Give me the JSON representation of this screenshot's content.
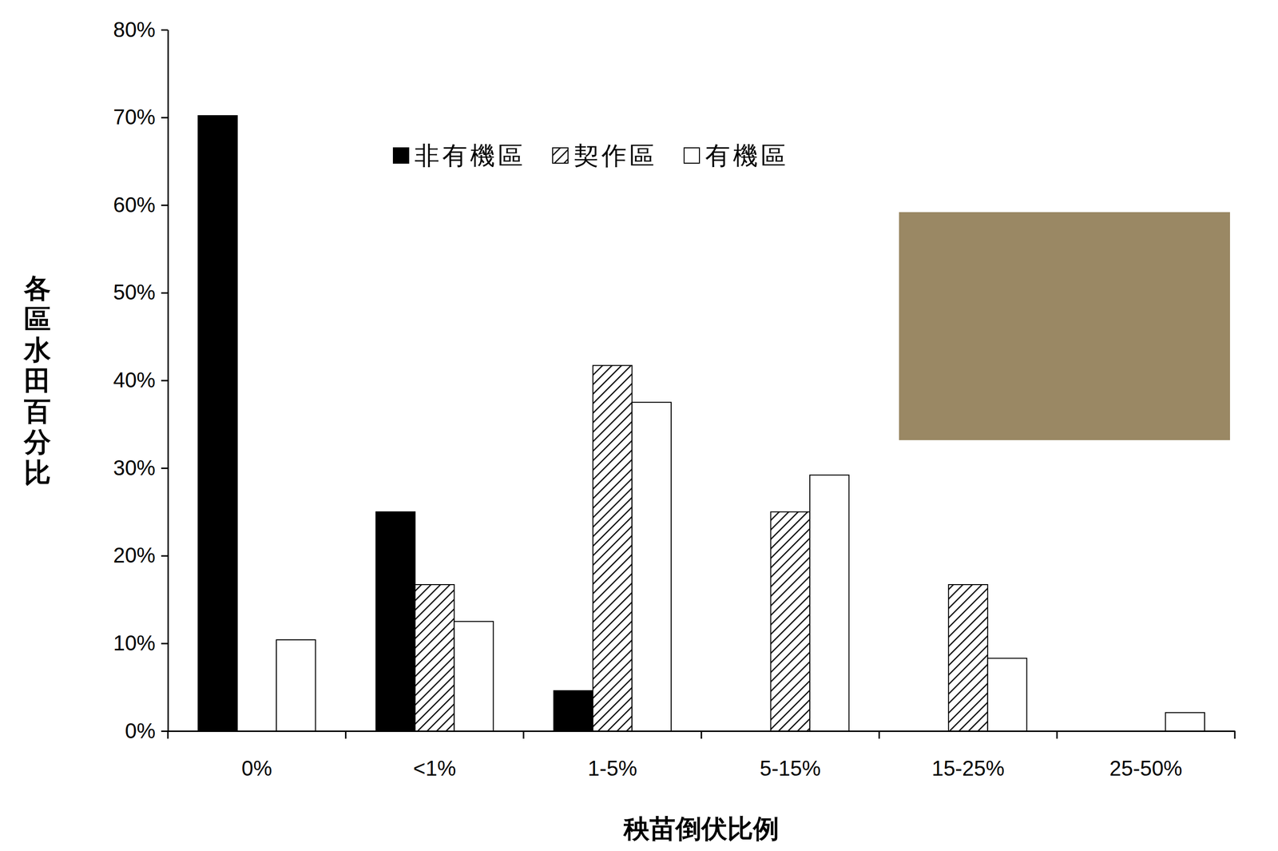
{
  "chart_data": {
    "type": "bar",
    "x_label": "秧苗倒伏比例",
    "y_label": "各區水田百分比",
    "categories": [
      "0%",
      "<1%",
      "1-5%",
      "5-15%",
      "15-25%",
      "25-50%"
    ],
    "series": [
      {
        "name": "非有機區",
        "color": "#000000",
        "marker": "solid",
        "values": [
          70.2,
          25.0,
          4.6,
          0,
          0,
          0
        ]
      },
      {
        "name": "契作區",
        "color": "#000000",
        "marker": "hatched",
        "values": [
          0,
          16.7,
          41.7,
          25.0,
          16.7,
          0
        ]
      },
      {
        "name": "有機區",
        "color": "#000000",
        "marker": "hollow",
        "values": [
          10.4,
          12.5,
          37.5,
          29.2,
          8.3,
          2.1
        ]
      }
    ],
    "ylim": [
      0,
      80
    ],
    "yticks": [
      {
        "value": 0,
        "label": "0%"
      },
      {
        "value": 10,
        "label": "10%"
      },
      {
        "value": 20,
        "label": "20%"
      },
      {
        "value": 30,
        "label": "30%"
      },
      {
        "value": 40,
        "label": "40%"
      },
      {
        "value": 50,
        "label": "50%"
      },
      {
        "value": 60,
        "label": "60%"
      },
      {
        "value": 70,
        "label": "70%"
      },
      {
        "value": 80,
        "label": "80%"
      }
    ],
    "grid": false,
    "legend": "top"
  }
}
